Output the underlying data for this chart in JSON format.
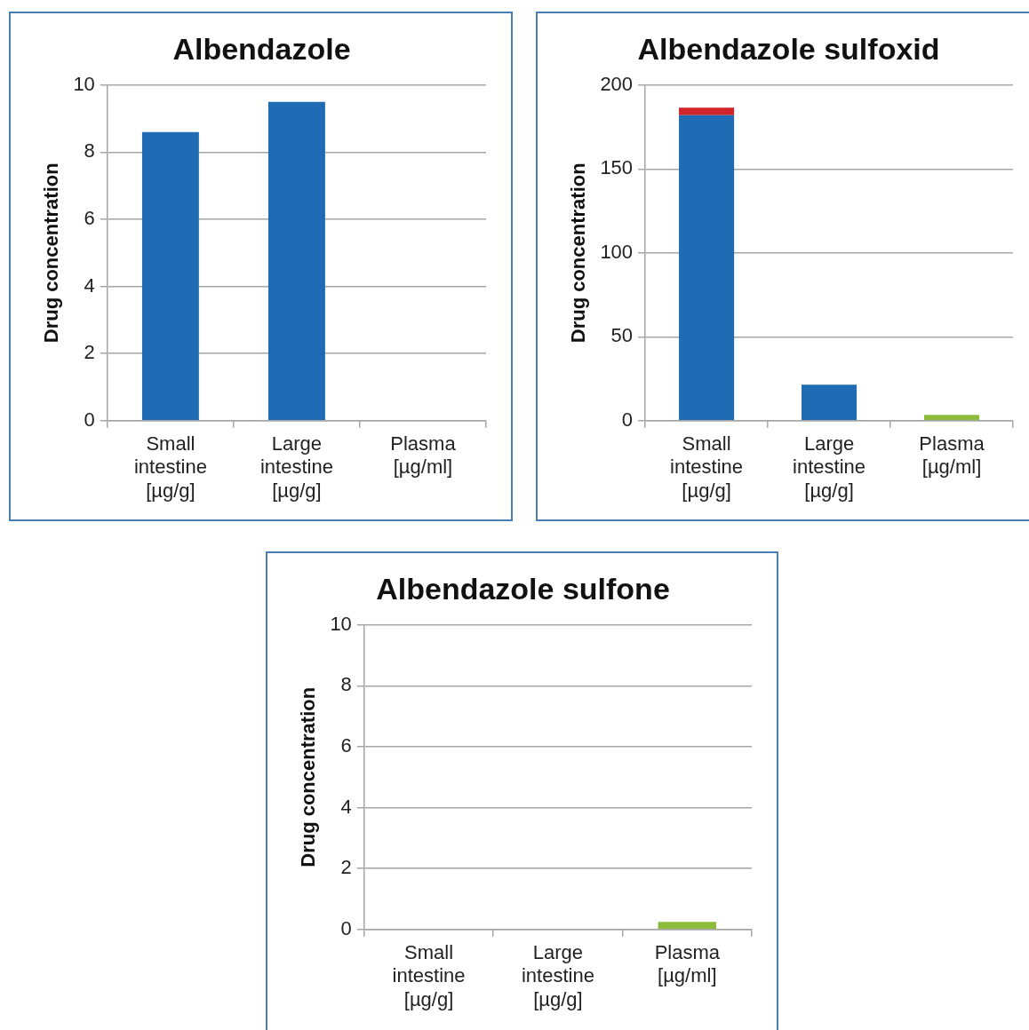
{
  "chart_data": [
    {
      "type": "bar",
      "title": "Albendazole",
      "ylabel": "Drug concentration",
      "categories": [
        "Small intestine [µg/g]",
        "Large intestine [µg/g]",
        "Plasma [µg/ml]"
      ],
      "series": [
        {
          "color": "#1f6cb4",
          "values": [
            8.6,
            9.5,
            null
          ]
        }
      ],
      "ylim": [
        0,
        10
      ],
      "yticks": [
        0,
        2,
        4,
        6,
        8,
        10
      ],
      "grid": "y",
      "legend": false
    },
    {
      "type": "bar",
      "title": "Albendazole sulfoxid",
      "ylabel": "Drug concentration",
      "categories": [
        "Small intestine [µg/g]",
        "Large intestine [µg/g]",
        "Plasma [µg/ml]"
      ],
      "stacked": true,
      "series": [
        {
          "color": "#1f6cb4",
          "values": [
            182,
            21.5,
            null
          ]
        },
        {
          "color": "#d0242a",
          "values": [
            4.5,
            null,
            null
          ]
        },
        {
          "color": "#8cbc3a",
          "values": [
            null,
            null,
            3.4
          ]
        }
      ],
      "ylim": [
        0,
        200
      ],
      "yticks": [
        0,
        50,
        100,
        150,
        200
      ],
      "grid": "y",
      "legend": false
    },
    {
      "type": "bar",
      "title": "Albendazole sulfone",
      "ylabel": "Drug concentration",
      "categories": [
        "Small intestine [µg/g]",
        "Large intestine [µg/g]",
        "Plasma [µg/ml]"
      ],
      "series": [
        {
          "color": "#8cbc3a",
          "values": [
            null,
            null,
            0.25
          ]
        }
      ],
      "ylim": [
        0,
        10
      ],
      "yticks": [
        0,
        2,
        4,
        6,
        8,
        10
      ],
      "grid": "y",
      "legend": false
    }
  ]
}
